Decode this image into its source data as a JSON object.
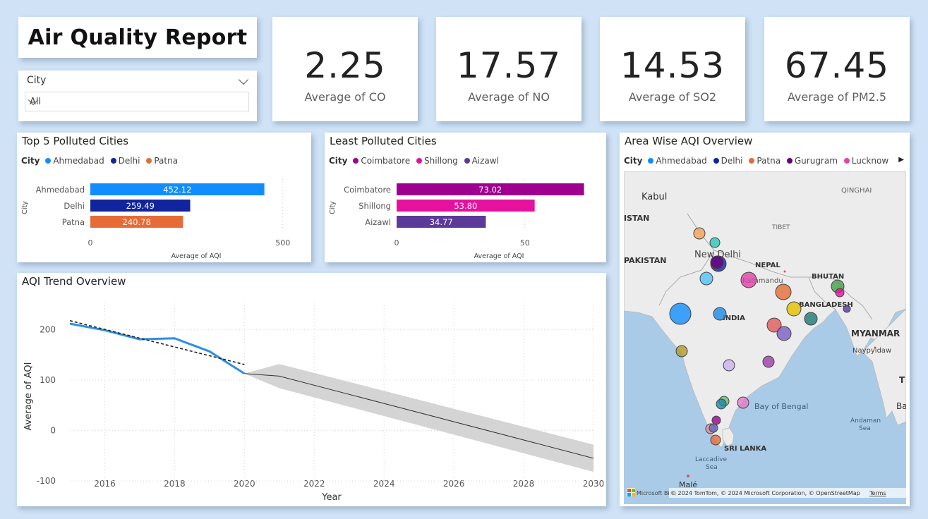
{
  "header": {
    "title": "Air Quality Report"
  },
  "slicer": {
    "label": "City",
    "value": "All"
  },
  "kpis": [
    {
      "value": "2.25",
      "label": "Average of CO"
    },
    {
      "value": "17.57",
      "label": "Average of NO"
    },
    {
      "value": "14.53",
      "label": "Average of SO2"
    },
    {
      "value": "67.45",
      "label": "Average of PM2.5"
    }
  ],
  "top5": {
    "title": "Top 5 Polluted Cities",
    "legend_title": "City",
    "legend": [
      "Ahmedabad",
      "Delhi",
      "Patna"
    ],
    "ylabel": "City",
    "xlabel": "Average of AQI",
    "ticks": [
      "0",
      "500"
    ]
  },
  "least": {
    "title": "Least Polluted Cities",
    "legend_title": "City",
    "legend": [
      "Coimbatore",
      "Shillong",
      "Aizawl"
    ],
    "ylabel": "City",
    "xlabel": "Average of AQI",
    "ticks": [
      "0",
      "50"
    ]
  },
  "trend": {
    "title": "AQI Trend Overview",
    "xlabel": "Year",
    "ylabel": "Average of AQI",
    "xticks": [
      "2016",
      "2018",
      "2020",
      "2022",
      "2024",
      "2026",
      "2028",
      "2030"
    ],
    "yticks": [
      "200",
      "100",
      "0",
      "-100"
    ]
  },
  "map": {
    "title": "Area Wise AQI Overview",
    "legend_title": "City",
    "legend": [
      "Ahmedabad",
      "Delhi",
      "Patna",
      "Gurugram",
      "Lucknow"
    ],
    "labels": {
      "kabul": "Kabul",
      "qinghai": "QINGHAI",
      "istan": "ISTAN",
      "tibet": "TIBET",
      "newdelhi": "New Delhi",
      "nepal": "NEPAL",
      "pakistan": "PAKISTAN",
      "kathmandu": "Kathmandu",
      "bhutan": "BHUTAN",
      "bangladesh": "BANGLADESH",
      "india": "INDIA",
      "myanmar": "MYANMAR",
      "naypyidaw": "Naypyidaw",
      "bay": "Bay of Bengal",
      "andaman1": "Andaman",
      "andaman2": "Sea",
      "srilanka": "SRI LANKA",
      "laccadive1": "Laccadive",
      "laccadive2": "Sea",
      "male": "Malé",
      "edge_t": "T",
      "edge_ba": "Ba"
    },
    "attribution": "© 2024 TomTom, © 2024 Microsoft Corporation, © OpenStreetMap",
    "terms": "Terms",
    "bing": "Microsoft Bing"
  },
  "colors": {
    "ahmedabad": "#118dff",
    "delhi": "#12239e",
    "patna": "#e66c37",
    "gurugram": "#6b007b",
    "lucknow": "#e044a7",
    "coimbatore": "#a00090",
    "shillong": "#e6119e",
    "aizawl": "#5b3a9a",
    "trend_line": "#2e8ee6",
    "forecast_band": "#d4d4d4"
  },
  "chart_data": [
    {
      "type": "bar",
      "title": "Top 5 Polluted Cities",
      "categories": [
        "Ahmedabad",
        "Delhi",
        "Patna"
      ],
      "values": [
        452.12,
        259.49,
        240.78
      ],
      "value_labels": [
        "452.12",
        "259.49",
        "240.78"
      ],
      "xlabel": "Average of AQI",
      "ylabel": "City",
      "xlim": [
        0,
        550
      ]
    },
    {
      "type": "bar",
      "title": "Least Polluted Cities",
      "categories": [
        "Coimbatore",
        "Shillong",
        "Aizawl"
      ],
      "values": [
        73.02,
        53.8,
        34.77
      ],
      "value_labels": [
        "73.02",
        "53.80",
        "34.77"
      ],
      "xlabel": "Average of AQI",
      "ylabel": "City",
      "xlim": [
        0,
        77
      ]
    },
    {
      "type": "line",
      "title": "AQI Trend Overview",
      "xlabel": "Year",
      "ylabel": "Average of AQI",
      "xlim": [
        2015,
        2030
      ],
      "ylim": [
        -100,
        240
      ],
      "series": [
        {
          "x": [
            2015,
            2016,
            2017,
            2018,
            2019,
            2020
          ],
          "values": [
            212,
            199,
            181,
            183,
            157,
            113
          ]
        }
      ],
      "trendline": {
        "x": [
          2015,
          2020
        ],
        "values": [
          218,
          131
        ]
      },
      "forecast": {
        "x": [
          2020,
          2021,
          2030
        ],
        "values": [
          113,
          108,
          -55
        ],
        "upper": [
          113,
          132,
          -28
        ],
        "lower": [
          113,
          84,
          -82
        ]
      }
    }
  ]
}
